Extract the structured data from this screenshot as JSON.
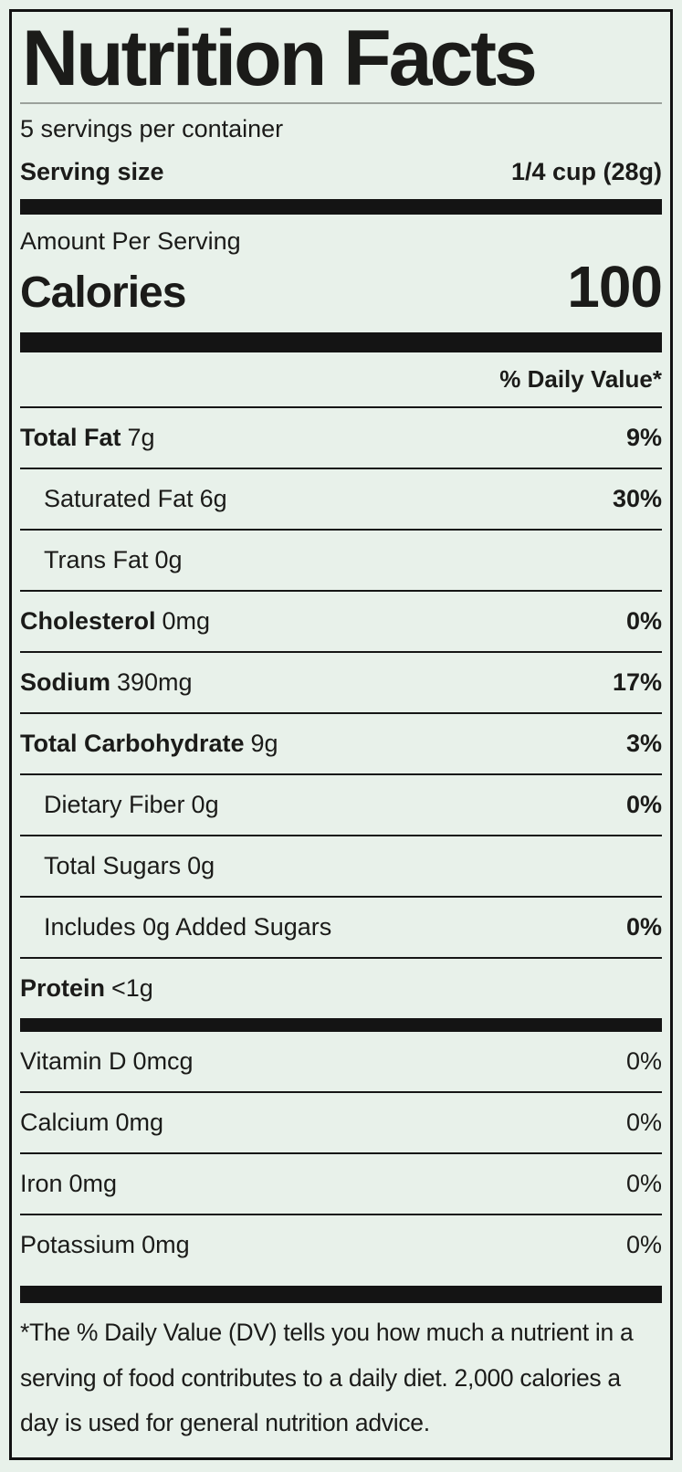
{
  "label": {
    "title": "Nutrition Facts",
    "servings_per_container": "5 servings per container",
    "serving_size_label": "Serving size",
    "serving_size_value": "1/4 cup (28g)",
    "amount_per_serving": "Amount Per Serving",
    "calories_label": "Calories",
    "calories_value": "100",
    "daily_value_header": "% Daily Value*",
    "nutrients": [
      {
        "name": "Total Fat",
        "amount": "7g",
        "dv": "9%",
        "bold": true,
        "indent": false
      },
      {
        "name": "Saturated Fat",
        "amount": "6g",
        "dv": "30%",
        "bold": false,
        "indent": true
      },
      {
        "name": "Trans Fat",
        "amount": "0g",
        "dv": "",
        "bold": false,
        "indent": true
      },
      {
        "name": "Cholesterol",
        "amount": "0mg",
        "dv": "0%",
        "bold": true,
        "indent": false
      },
      {
        "name": "Sodium",
        "amount": "390mg",
        "dv": "17%",
        "bold": true,
        "indent": false
      },
      {
        "name": "Total Carbohydrate",
        "amount": "9g",
        "dv": "3%",
        "bold": true,
        "indent": false
      },
      {
        "name": "Dietary Fiber",
        "amount": "0g",
        "dv": "0%",
        "bold": false,
        "indent": true
      },
      {
        "name": "Total Sugars",
        "amount": "0g",
        "dv": "",
        "bold": false,
        "indent": true
      },
      {
        "name": "Includes 0g Added Sugars",
        "amount": "",
        "dv": "0%",
        "bold": false,
        "indent": true
      },
      {
        "name": "Protein",
        "amount": "<1g",
        "dv": "",
        "bold": true,
        "indent": false
      }
    ],
    "vitamins": [
      {
        "name": "Vitamin D",
        "amount": "0mcg",
        "dv": "0%"
      },
      {
        "name": "Calcium",
        "amount": "0mg",
        "dv": "0%"
      },
      {
        "name": "Iron",
        "amount": "0mg",
        "dv": "0%"
      },
      {
        "name": "Potassium",
        "amount": "0mg",
        "dv": "0%"
      }
    ],
    "footnote": "*The % Daily Value (DV) tells you how much a nutrient in a serving of food contributes to a daily diet. 2,000 calories a day is used for general nutrition advice."
  },
  "colors": {
    "background": "#e8f1ea",
    "ink": "#1b1b19",
    "bar": "#141414",
    "title_divider": "#9ba19b"
  }
}
